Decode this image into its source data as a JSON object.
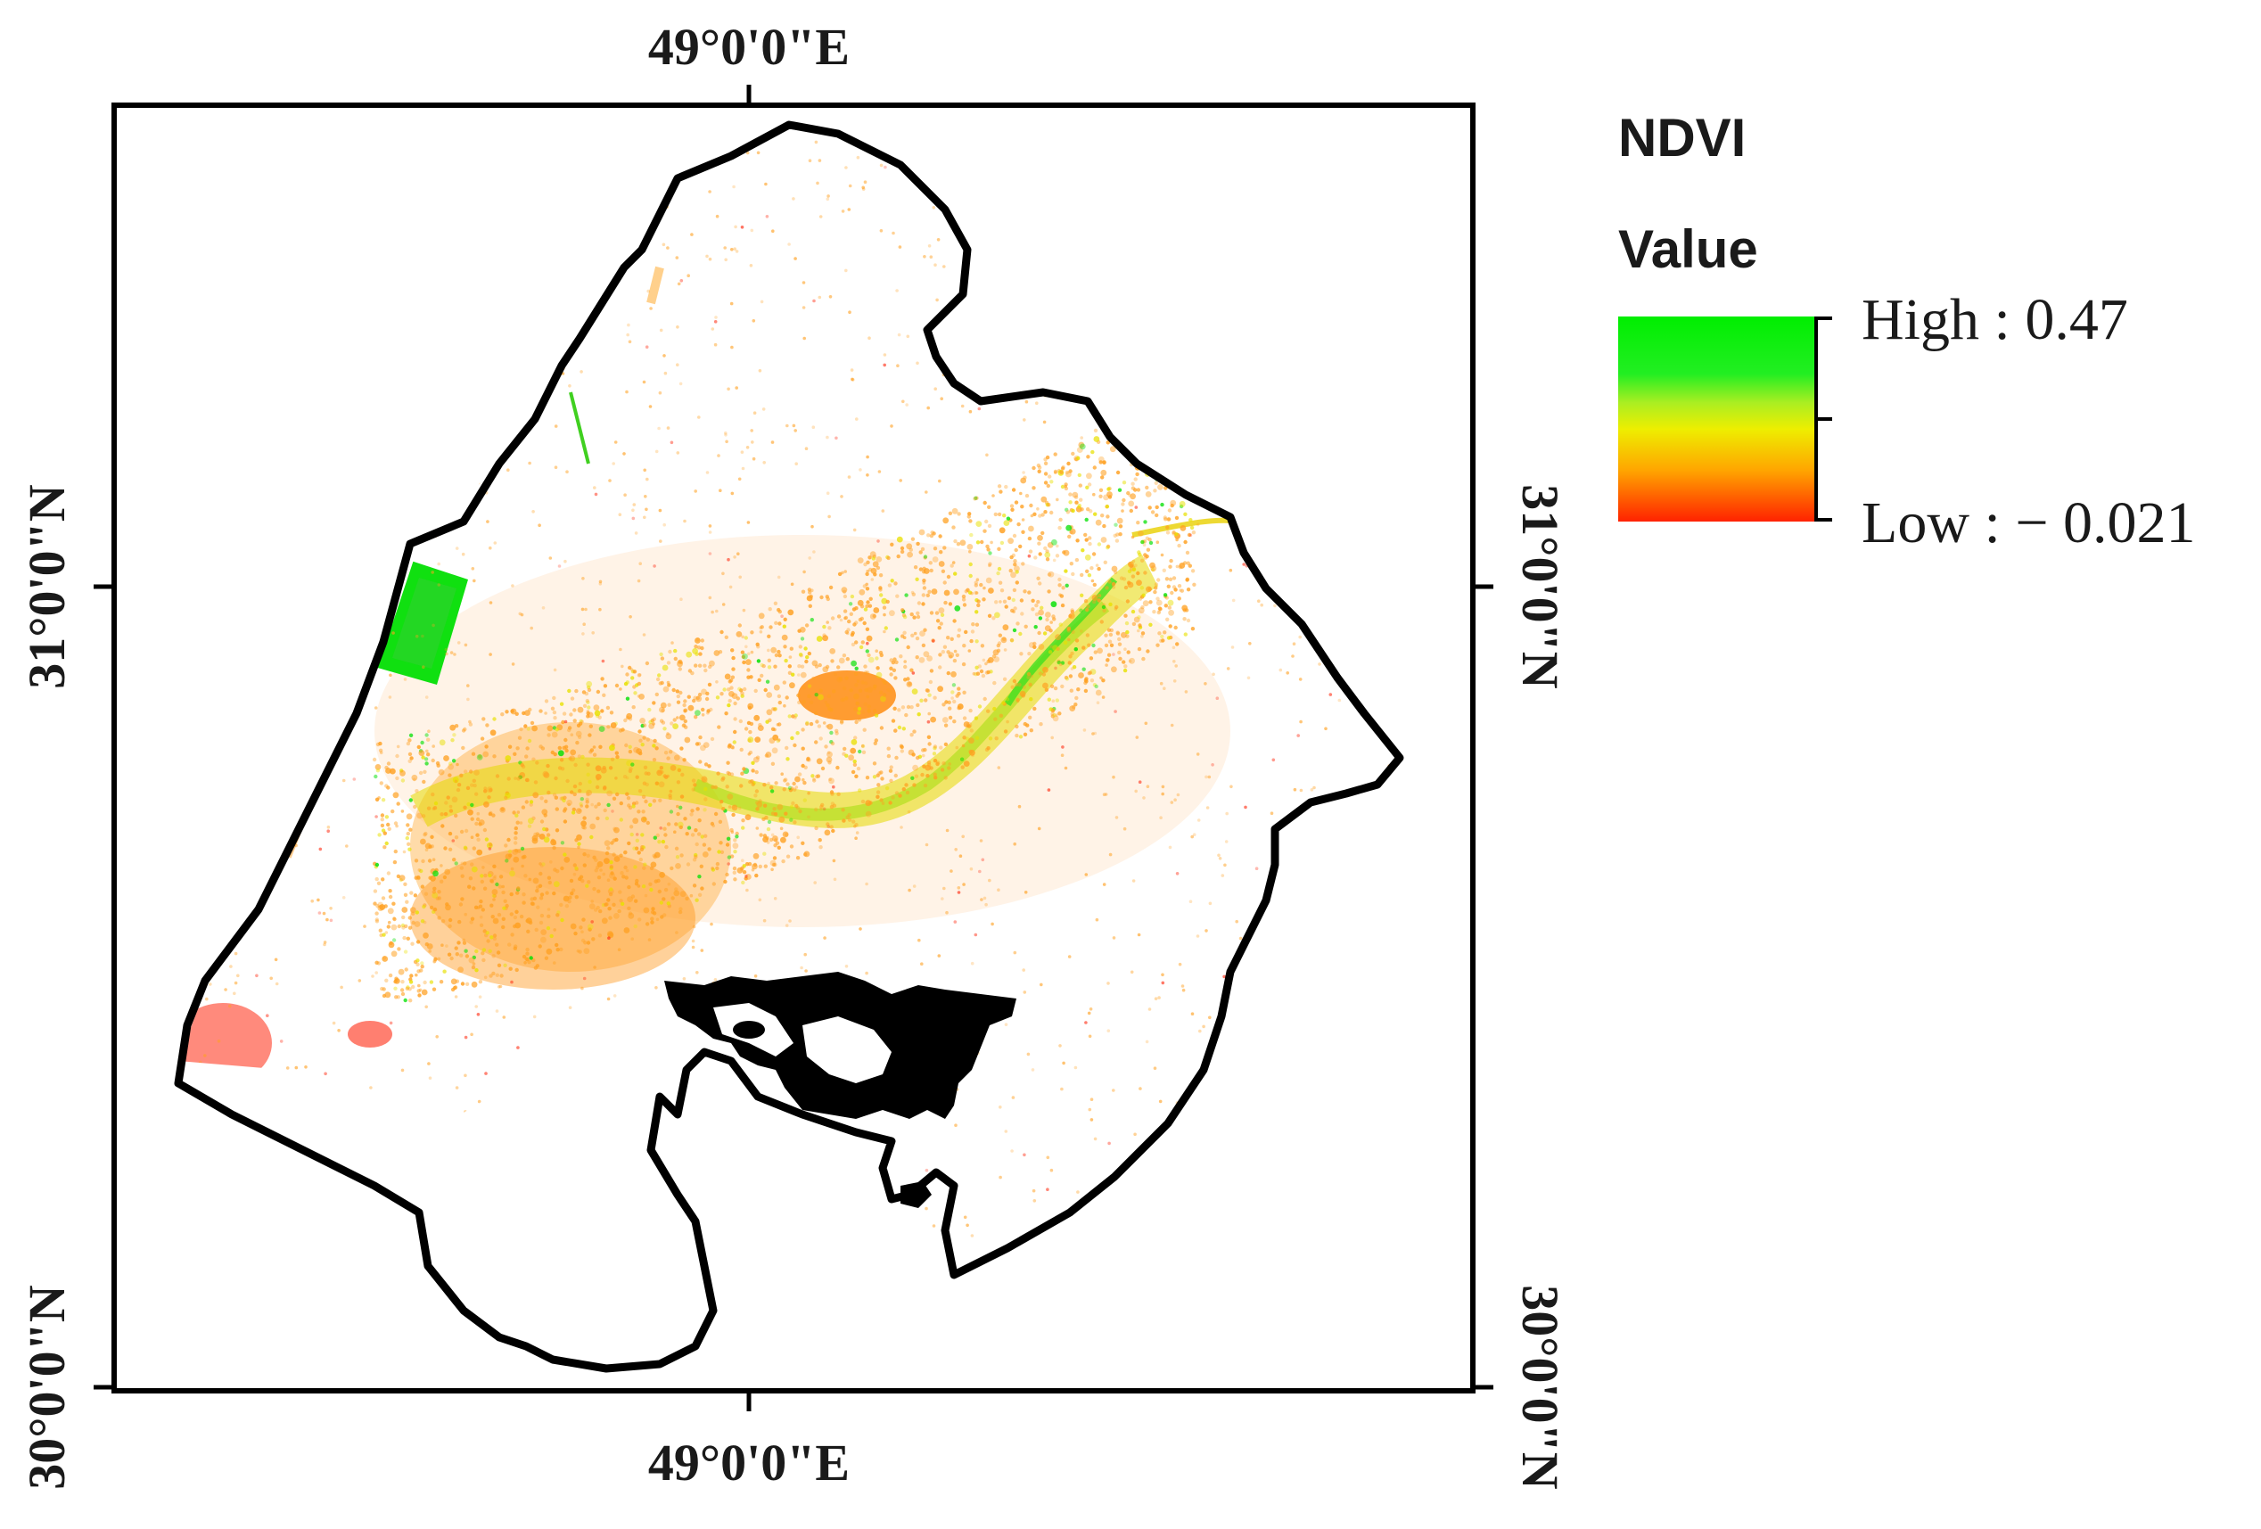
{
  "map": {
    "title": "NDVI",
    "legend": {
      "heading": "Value",
      "high_label": "High : 0.47",
      "low_label": "Low : − 0.021",
      "high_value": 0.47,
      "low_value": -0.021,
      "gradient_colors": [
        "#00ee00",
        "#aaee22",
        "#eeee00",
        "#ffa500",
        "#ff2200"
      ]
    },
    "graticule": {
      "top_longitude": "49°0'0\"E",
      "bottom_longitude": "49°0'0\"E",
      "left_lat_upper": "31°0'0\"N",
      "left_lat_lower": "30°0'0\"N",
      "right_lat_upper": "31°0'0\"N",
      "right_lat_lower": "30°0'0\"N"
    },
    "colors": {
      "frame": "#000000",
      "boundary": "#000000",
      "vegetation_high": "#00e000",
      "vegetation_mid": "#e8e000",
      "vegetation_low": "#ffa020",
      "bare": "#ff2a10"
    }
  }
}
